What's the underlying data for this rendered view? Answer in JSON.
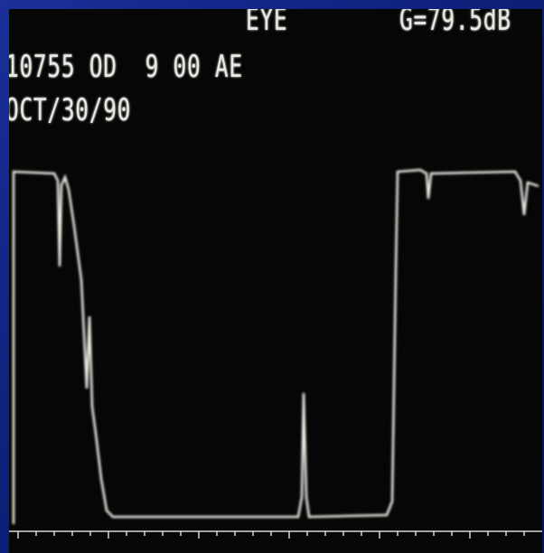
{
  "header": {
    "mode": "EYE",
    "gain": "G=79.5dB",
    "patient_line": "10755 OD  9 00 AE",
    "date": "OCT/30/90"
  }
}
